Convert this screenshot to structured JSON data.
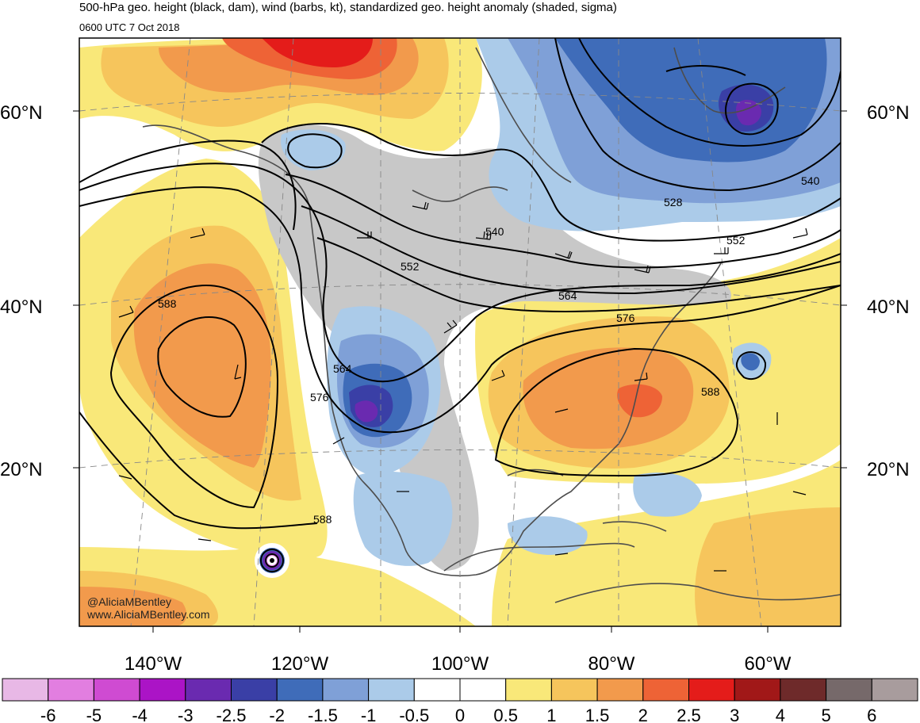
{
  "header": {
    "title": "500-hPa geo. height (black, dam), wind (barbs, kt), standardized geo. height anomaly (shaded, sigma)",
    "subtitle": "0600 UTC 7 Oct 2018"
  },
  "map": {
    "lat_labels": [
      "60°N",
      "40°N",
      "20°N"
    ],
    "lon_labels": [
      "140°W",
      "120°W",
      "100°W",
      "80°W",
      "60°W"
    ],
    "contour_labels": [
      "588",
      "564",
      "576",
      "588",
      "552",
      "540",
      "564",
      "576",
      "588",
      "552",
      "540",
      "528"
    ],
    "credit": {
      "handle": "@AliciaMBentley",
      "website": "www.AliciaMBentley.com"
    }
  },
  "colorbar": {
    "labels": [
      "-6",
      "-5",
      "-4",
      "-3",
      "-2.5",
      "-2",
      "-1.5",
      "-1",
      "-0.5",
      "0",
      "0.5",
      "1",
      "1.5",
      "2",
      "2.5",
      "3",
      "4",
      "5",
      "6"
    ],
    "colors": [
      "#e8b8e6",
      "#e27ee0",
      "#cf4bd2",
      "#ab14c6",
      "#6a2ab0",
      "#3a3fa6",
      "#3f6cb9",
      "#7fa0d7",
      "#abcbe9",
      "#ffffff",
      "#ffffff",
      "#f9e879",
      "#f6c55c",
      "#f29a4c",
      "#ee6336",
      "#e41c1a",
      "#a11818",
      "#6e2a2a",
      "#76696a",
      "#a89c9d"
    ]
  },
  "colors": {
    "land_outline": "#4d4d4d",
    "contour": "#000000",
    "neutral": "#c8c8c8"
  }
}
